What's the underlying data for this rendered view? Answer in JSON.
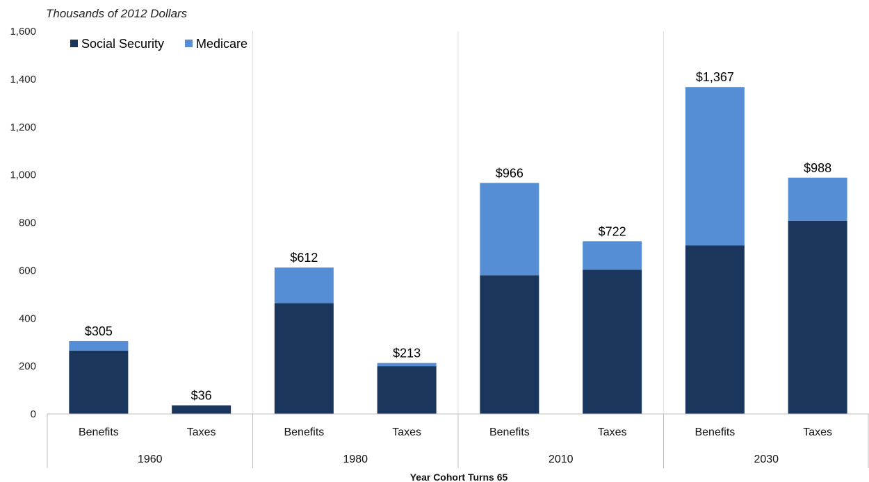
{
  "chart_data": {
    "type": "bar",
    "stacked": true,
    "ylabel": "Thousands of 2012 Dollars",
    "xlabel": "Year Cohort Turns 65",
    "ylim": [
      0,
      1600
    ],
    "yticks": [
      "0",
      "200",
      "400",
      "600",
      "800",
      "1,000",
      "1,200",
      "1,400",
      "1,600"
    ],
    "ytick_values": [
      0,
      200,
      400,
      600,
      800,
      1000,
      1200,
      1400,
      1600
    ],
    "grid": false,
    "legend_position": "top-left",
    "groups": [
      "1960",
      "1980",
      "2010",
      "2030"
    ],
    "categories": [
      "Benefits",
      "Taxes",
      "Benefits",
      "Taxes",
      "Benefits",
      "Taxes",
      "Benefits",
      "Taxes"
    ],
    "series": [
      {
        "name": "Social Security",
        "color": "#1b365d",
        "values": [
          265,
          36,
          463,
          200,
          580,
          603,
          705,
          808
        ]
      },
      {
        "name": "Medicare",
        "color": "#558ed5",
        "values": [
          40,
          0,
          149,
          13,
          386,
          119,
          662,
          180
        ]
      }
    ],
    "totals": [
      305,
      36,
      612,
      213,
      966,
      722,
      1367,
      988
    ],
    "total_labels": [
      "$305",
      "$36",
      "$612",
      "$213",
      "$966",
      "$722",
      "$1,367",
      "$988"
    ]
  }
}
